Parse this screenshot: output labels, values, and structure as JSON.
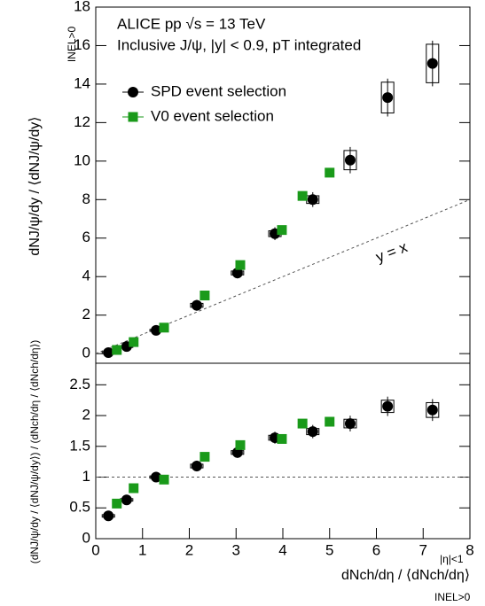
{
  "chart_data": [
    {
      "type": "scatter",
      "title_lines": [
        "ALICE pp √s = 13 TeV",
        "Inclusive J/ψ, |y| < 0.9, pT integrated"
      ],
      "ylabel": "dNJ/ψ/dy / ⟨dNJ/ψ/dy⟩",
      "ylabel_sub": "INEL>0",
      "annotation": "y = x",
      "xlim": [
        0,
        8
      ],
      "ylim": [
        -0.5,
        18
      ],
      "yticks": [
        0,
        2,
        4,
        6,
        8,
        10,
        12,
        14,
        16,
        18
      ],
      "series": [
        {
          "name": "SPD event selection",
          "color": "#000000",
          "marker": "circle",
          "x": [
            0.27,
            0.66,
            1.29,
            2.16,
            3.03,
            3.83,
            4.64,
            5.44,
            6.24,
            7.2
          ],
          "values": [
            0.05,
            0.37,
            1.21,
            2.51,
            4.19,
            6.23,
            8.0,
            10.05,
            13.3,
            15.07
          ],
          "syst": [
            0.05,
            0.05,
            0.05,
            0.1,
            0.1,
            0.15,
            0.2,
            0.5,
            0.8,
            1.0
          ]
        },
        {
          "name": "V0 event selection",
          "color": "#1a9a1a",
          "marker": "square",
          "x": [
            0.45,
            0.81,
            1.46,
            2.33,
            3.09,
            3.98,
            4.42,
            5.0
          ],
          "values": [
            0.19,
            0.6,
            1.35,
            3.02,
            4.6,
            6.42,
            8.19,
            9.4
          ]
        }
      ]
    },
    {
      "type": "scatter",
      "ylabel": "(dNJ/ψ/dy / ⟨dNJ/ψ/dy⟩) / (dNch/dη / ⟨dNch/dη⟩)",
      "xlabel": "dNch/dη / ⟨dNch/dη⟩",
      "xlabel_sup": "|η|<1",
      "xlabel_sub": "INEL>0",
      "xlim": [
        0,
        8
      ],
      "ylim": [
        0,
        2.85
      ],
      "xticks": [
        0,
        1,
        2,
        3,
        4,
        5,
        6,
        7,
        8
      ],
      "yticks": [
        0,
        0.5,
        1,
        1.5,
        2,
        2.5
      ],
      "reference": 1,
      "series": [
        {
          "color": "#000000",
          "marker": "circle",
          "x": [
            0.27,
            0.66,
            1.29,
            2.16,
            3.03,
            3.83,
            4.64,
            5.44,
            6.24,
            7.2
          ],
          "values": [
            0.37,
            0.63,
            1.0,
            1.18,
            1.4,
            1.64,
            1.74,
            1.87,
            2.15,
            2.09
          ],
          "syst": [
            0.02,
            0.02,
            0.02,
            0.03,
            0.03,
            0.04,
            0.05,
            0.07,
            0.1,
            0.12
          ]
        },
        {
          "color": "#1a9a1a",
          "marker": "square",
          "x": [
            0.45,
            0.81,
            1.46,
            2.33,
            3.09,
            3.98,
            4.42,
            5.0
          ],
          "values": [
            0.57,
            0.82,
            0.96,
            1.33,
            1.52,
            1.62,
            1.87,
            1.9
          ]
        }
      ]
    }
  ]
}
